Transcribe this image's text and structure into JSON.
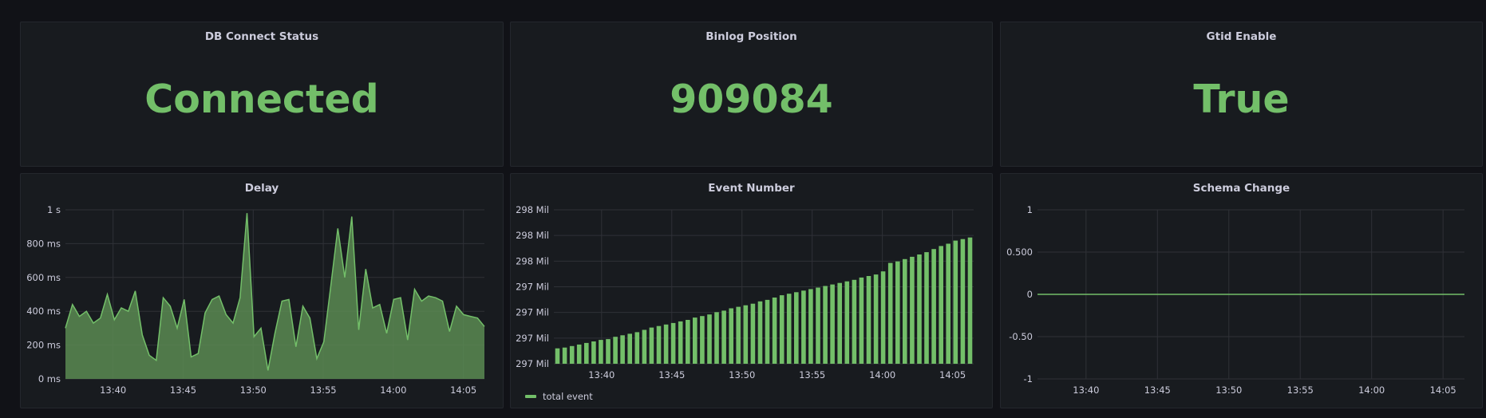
{
  "colors": {
    "background": "#111217",
    "panel": "#181b1f",
    "panel_border": "#24272d",
    "value_green": "#73bf69",
    "series_line": "#73bf69",
    "series_fill": "#5b8a52",
    "gridline": "#2f3137",
    "text": "#ccccdc"
  },
  "stats": [
    {
      "title": "DB Connect Status",
      "value": "Connected"
    },
    {
      "title": "Binlog Position",
      "value": "909084"
    },
    {
      "title": "Gtid Enable",
      "value": "True"
    }
  ],
  "chart_data": [
    {
      "type": "area",
      "title": "Delay",
      "xlabel": "",
      "ylabel": "",
      "x_ticks": [
        "13:40",
        "13:45",
        "13:50",
        "13:55",
        "14:00",
        "14:05"
      ],
      "y_ticks": [
        "0 ms",
        "200 ms",
        "400 ms",
        "600 ms",
        "800 ms",
        "1 s"
      ],
      "ylim": [
        0,
        1000
      ],
      "x_start_minute": 36.6,
      "x_end_minute": 66.5,
      "x_tick_minutes": [
        40,
        45,
        50,
        55,
        60,
        65
      ],
      "unit": "ms",
      "grid": true,
      "legend": null,
      "values": [
        300,
        440,
        370,
        400,
        330,
        360,
        500,
        350,
        420,
        400,
        520,
        260,
        140,
        110,
        480,
        430,
        300,
        470,
        130,
        150,
        390,
        470,
        490,
        380,
        330,
        480,
        980,
        250,
        300,
        50,
        270,
        460,
        470,
        190,
        430,
        360,
        120,
        220,
        550,
        890,
        600,
        960,
        290,
        650,
        420,
        440,
        270,
        470,
        480,
        230,
        530,
        460,
        490,
        480,
        460,
        280,
        430,
        380,
        370,
        360,
        310
      ]
    },
    {
      "type": "bar",
      "title": "Event Number",
      "xlabel": "",
      "ylabel": "",
      "x_ticks": [
        "13:40",
        "13:45",
        "13:50",
        "13:55",
        "14:00",
        "14:05"
      ],
      "y_ticks": [
        "297 Mil",
        "297 Mil",
        "297 Mil",
        "297 Mil",
        "298 Mil",
        "298 Mil",
        "298 Mil"
      ],
      "ylim": [
        0,
        1
      ],
      "x_start_minute": 36.6,
      "x_end_minute": 66.5,
      "x_tick_minutes": [
        40,
        45,
        50,
        55,
        60,
        65
      ],
      "grid": true,
      "legend": "bottom-left",
      "series": [
        {
          "name": "total event",
          "values": [
            0.1,
            0.105,
            0.115,
            0.125,
            0.135,
            0.145,
            0.155,
            0.16,
            0.175,
            0.185,
            0.195,
            0.205,
            0.22,
            0.235,
            0.245,
            0.255,
            0.265,
            0.275,
            0.285,
            0.3,
            0.31,
            0.32,
            0.335,
            0.345,
            0.36,
            0.37,
            0.38,
            0.39,
            0.405,
            0.415,
            0.43,
            0.445,
            0.455,
            0.465,
            0.475,
            0.485,
            0.495,
            0.505,
            0.515,
            0.525,
            0.535,
            0.545,
            0.56,
            0.57,
            0.58,
            0.6,
            0.655,
            0.665,
            0.68,
            0.695,
            0.71,
            0.725,
            0.745,
            0.765,
            0.78,
            0.8,
            0.81,
            0.82
          ]
        }
      ]
    },
    {
      "type": "line",
      "title": "Schema Change",
      "xlabel": "",
      "ylabel": "",
      "x_ticks": [
        "13:40",
        "13:45",
        "13:50",
        "13:55",
        "14:00",
        "14:05"
      ],
      "y_ticks": [
        "-1",
        "-0.50",
        "0",
        "0.500",
        "1"
      ],
      "ylim": [
        -1,
        1
      ],
      "x_start_minute": 36.6,
      "x_end_minute": 66.5,
      "x_tick_minutes": [
        40,
        45,
        50,
        55,
        60,
        65
      ],
      "grid": true,
      "legend": null,
      "values": [
        0,
        0
      ]
    }
  ]
}
